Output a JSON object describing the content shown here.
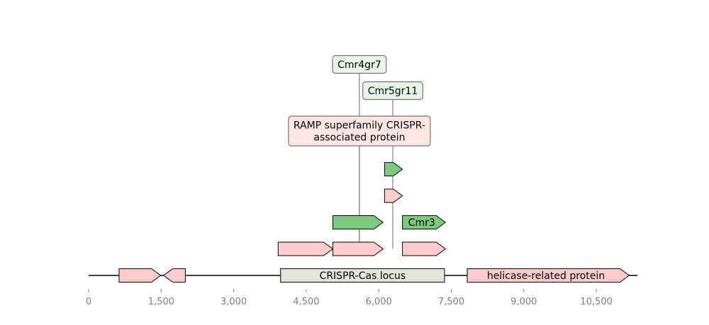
{
  "chart_data": {
    "type": "gene-map",
    "axis": {
      "range": [
        0,
        11350
      ],
      "ticks": [
        0,
        1500,
        3000,
        4500,
        6000,
        7500,
        9000,
        10500
      ],
      "tick_labels": [
        "0",
        "1,500",
        "3,000",
        "4,500",
        "6,000",
        "7,500",
        "9,000",
        "10,500"
      ]
    },
    "colors": {
      "pink": "#ffcccc",
      "green": "#7cc87c",
      "gray": "#e4e4dc",
      "label_pink_bg": "#ffe6e6",
      "label_green_bg": "#e9f5e9",
      "axis_text": "#808080"
    },
    "track0": [
      {
        "start": 630,
        "end": 1490,
        "strand": 1,
        "color": "pink",
        "label": ""
      },
      {
        "start": 1550,
        "end": 2000,
        "strand": -1,
        "color": "pink",
        "label": ""
      },
      {
        "start": 3970,
        "end": 7360,
        "strand": 0,
        "color": "gray",
        "label": "CRISPR-Cas locus"
      },
      {
        "start": 7830,
        "end": 11180,
        "strand": 1,
        "color": "pink",
        "label": "helicase-related protein"
      }
    ],
    "stacked": [
      {
        "start": 3920,
        "end": 5050,
        "strand": 1,
        "color": "pink",
        "level": 1,
        "label": ""
      },
      {
        "start": 5050,
        "end": 6090,
        "strand": 1,
        "color": "pink",
        "level": 1,
        "label": ""
      },
      {
        "start": 6490,
        "end": 7380,
        "strand": 1,
        "color": "pink",
        "level": 1,
        "label": ""
      },
      {
        "start": 5050,
        "end": 6090,
        "strand": 1,
        "color": "green",
        "level": 2,
        "label": ""
      },
      {
        "start": 6490,
        "end": 7380,
        "strand": 1,
        "color": "green",
        "level": 2,
        "label": "Cmr3"
      },
      {
        "start": 6120,
        "end": 6490,
        "strand": 1,
        "color": "pink",
        "level": 3,
        "label": ""
      },
      {
        "start": 6120,
        "end": 6490,
        "strand": 1,
        "color": "green",
        "level": 4,
        "label": ""
      }
    ],
    "callouts": [
      {
        "text_lines": [
          "RAMP superfamily CRISPR-",
          "associated protein"
        ],
        "anchor_x": 5600,
        "bg": "label_pink_bg"
      },
      {
        "text_lines": [
          "Cmr5gr11"
        ],
        "anchor_x": 6290,
        "bg": "label_green_bg"
      },
      {
        "text_lines": [
          "Cmr4gr7"
        ],
        "anchor_x": 5600,
        "bg": "label_green_bg"
      }
    ]
  }
}
